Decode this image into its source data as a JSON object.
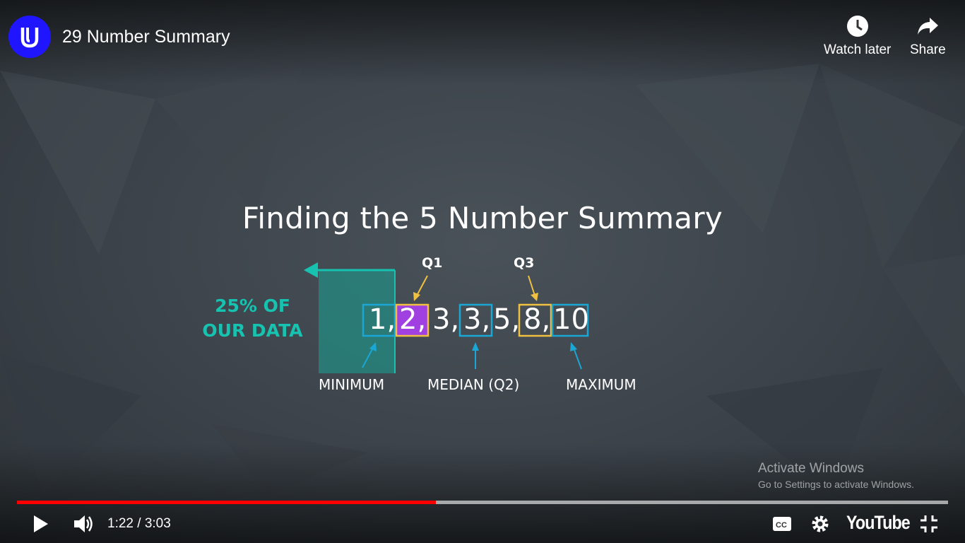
{
  "header": {
    "video_title": "29 Number Summary",
    "watch_later_label": "Watch later",
    "share_label": "Share"
  },
  "slide": {
    "title": "Finding the 5 Number Summary",
    "teal_label_line1": "25% OF",
    "teal_label_line2": "OUR DATA",
    "q1_label": "Q1",
    "q3_label": "Q3",
    "minimum_label": "MINIMUM",
    "median_label": "MEDIAN (Q2)",
    "maximum_label": "MAXIMUM",
    "numbers": [
      "1,",
      "2,",
      "3,",
      "3,",
      "5,",
      "8,",
      "10"
    ]
  },
  "player": {
    "current_time": "1:22",
    "duration": "3:03",
    "time_display": "1:22 / 3:03",
    "progress_fraction": 0.45,
    "youtube_label": "YouTube"
  },
  "watermark": {
    "title": "Activate Windows",
    "subtitle": "Go to Settings to activate Windows."
  },
  "colors": {
    "channel_logo": "#2015ff",
    "teal": "#17c3b0",
    "yellow": "#f0c040",
    "blue": "#1aa7d6",
    "purple": "#a040e0",
    "progress": "#ff0000"
  },
  "icons": [
    "udacity-logo-icon",
    "clock-icon",
    "share-arrow-icon",
    "play-icon",
    "volume-icon",
    "captions-icon",
    "gear-icon",
    "exit-fullscreen-icon"
  ]
}
